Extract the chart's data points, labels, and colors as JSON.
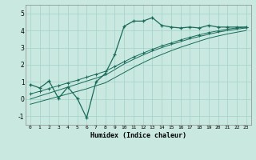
{
  "xlabel": "Humidex (Indice chaleur)",
  "bg_color": "#c8e8e0",
  "line_color": "#1a6b5a",
  "grid_color": "#a8d4cc",
  "xlim": [
    -0.5,
    23.5
  ],
  "ylim": [
    -1.5,
    5.5
  ],
  "xticks": [
    0,
    1,
    2,
    3,
    4,
    5,
    6,
    7,
    8,
    9,
    10,
    11,
    12,
    13,
    14,
    15,
    16,
    17,
    18,
    19,
    20,
    21,
    22,
    23
  ],
  "yticks": [
    -1,
    0,
    1,
    2,
    3,
    4,
    5
  ],
  "line1_x": [
    0,
    1,
    2,
    3,
    4,
    5,
    6,
    7,
    8,
    9,
    10,
    11,
    12,
    13,
    14,
    15,
    16,
    17,
    18,
    19,
    20,
    21,
    22,
    23
  ],
  "line1_y": [
    0.85,
    0.65,
    1.05,
    0.05,
    0.7,
    0.05,
    -1.1,
    1.0,
    1.5,
    2.6,
    4.25,
    4.55,
    4.55,
    4.75,
    4.3,
    4.2,
    4.15,
    4.2,
    4.15,
    4.3,
    4.2,
    4.2,
    4.2,
    4.2
  ],
  "line2_x": [
    0,
    1,
    2,
    3,
    4,
    5,
    6,
    7,
    8,
    9,
    10,
    11,
    12,
    13,
    14,
    15,
    16,
    17,
    18,
    19,
    20,
    21,
    22,
    23
  ],
  "line2_y": [
    0.3,
    0.45,
    0.62,
    0.78,
    0.95,
    1.1,
    1.28,
    1.45,
    1.62,
    1.9,
    2.18,
    2.45,
    2.68,
    2.9,
    3.1,
    3.27,
    3.45,
    3.6,
    3.75,
    3.88,
    3.98,
    4.08,
    4.15,
    4.2
  ],
  "line3_x": [
    0,
    1,
    2,
    3,
    4,
    5,
    6,
    7,
    8,
    9,
    10,
    11,
    12,
    13,
    14,
    15,
    16,
    17,
    18,
    19,
    20,
    21,
    22,
    23
  ],
  "line3_y": [
    0.0,
    0.18,
    0.35,
    0.52,
    0.7,
    0.87,
    1.05,
    1.22,
    1.4,
    1.72,
    2.05,
    2.32,
    2.57,
    2.8,
    3.0,
    3.18,
    3.35,
    3.52,
    3.65,
    3.78,
    3.9,
    4.0,
    4.08,
    4.15
  ],
  "line4_x": [
    0,
    1,
    2,
    3,
    4,
    5,
    6,
    7,
    8,
    9,
    10,
    11,
    12,
    13,
    14,
    15,
    16,
    17,
    18,
    19,
    20,
    21,
    22,
    23
  ],
  "line4_y": [
    -0.3,
    -0.15,
    0.0,
    0.15,
    0.3,
    0.45,
    0.6,
    0.78,
    0.95,
    1.25,
    1.55,
    1.85,
    2.12,
    2.38,
    2.6,
    2.82,
    3.02,
    3.2,
    3.38,
    3.55,
    3.68,
    3.8,
    3.9,
    4.0
  ]
}
